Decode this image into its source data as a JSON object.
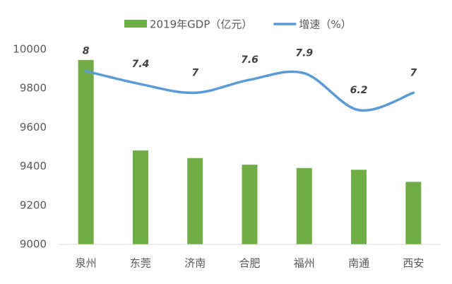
{
  "chart_data": {
    "type": "bar-line",
    "categories": [
      "泉州",
      "东莞",
      "济南",
      "合肥",
      "福州",
      "南通",
      "西安"
    ],
    "series": [
      {
        "name": "2019年GDP（亿元）",
        "type": "bar",
        "color": "#70ad47",
        "values": [
          9946,
          9482,
          9443,
          9409,
          9392,
          9383,
          9321
        ]
      },
      {
        "name": "增速（%）",
        "type": "line",
        "axis": "y2",
        "color": "#5b9bd5",
        "values": [
          8,
          7.4,
          7,
          7.6,
          7.9,
          6.2,
          7
        ]
      }
    ],
    "ylim": [
      9000,
      10000
    ],
    "yticks": [
      9000,
      9200,
      9400,
      9600,
      9800,
      10000
    ],
    "y2lim": [
      0,
      9
    ],
    "grid": false,
    "legend": "top"
  }
}
